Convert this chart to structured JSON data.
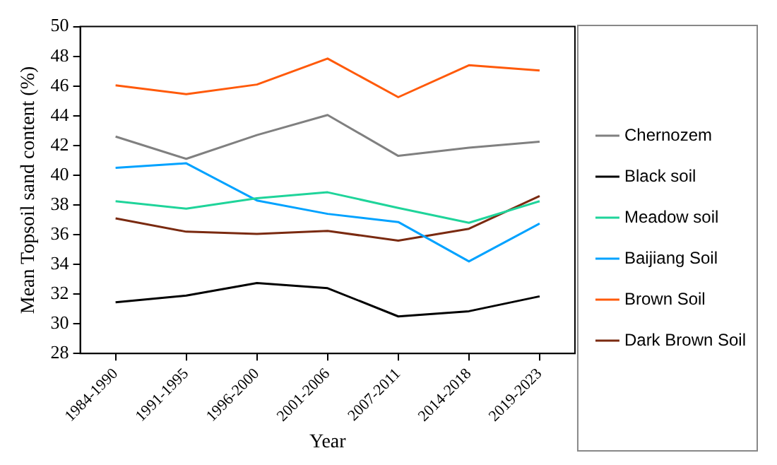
{
  "chart_data": {
    "type": "line",
    "xlabel": "Year",
    "ylabel": "Mean Topsoil sand content (%)",
    "categories": [
      "1984-1990",
      "1991-1995",
      "1996-2000",
      "2001-2006",
      "2007-2011",
      "2014-2018",
      "2019-2023"
    ],
    "series": [
      {
        "name": "Chernozem",
        "color": "#808080",
        "values": [
          42.6,
          41.1,
          42.7,
          44.05,
          41.3,
          41.85,
          42.25
        ]
      },
      {
        "name": "Black soil",
        "color": "#000000",
        "values": [
          31.45,
          31.9,
          32.75,
          32.4,
          30.5,
          30.85,
          31.85
        ]
      },
      {
        "name": "Meadow soil",
        "color": "#1fd49a",
        "values": [
          38.25,
          37.75,
          38.45,
          38.85,
          37.8,
          36.8,
          38.25
        ]
      },
      {
        "name": "Baijiang Soil",
        "color": "#00a2ff",
        "values": [
          40.5,
          40.8,
          38.3,
          37.4,
          36.85,
          34.2,
          36.75
        ]
      },
      {
        "name": "Brown Soil",
        "color": "#ff5a0a",
        "values": [
          46.05,
          45.45,
          46.1,
          47.85,
          45.25,
          47.4,
          47.05
        ]
      },
      {
        "name": "Dark Brown Soil",
        "color": "#7a2a10",
        "values": [
          37.1,
          36.2,
          36.05,
          36.25,
          35.6,
          36.4,
          38.6
        ]
      }
    ],
    "ylim": [
      28,
      50
    ],
    "yticks": [
      28,
      30,
      32,
      34,
      36,
      38,
      40,
      42,
      44,
      46,
      48,
      50
    ],
    "grid": false,
    "legend": "right",
    "marker": "none",
    "line_style": "solid"
  }
}
